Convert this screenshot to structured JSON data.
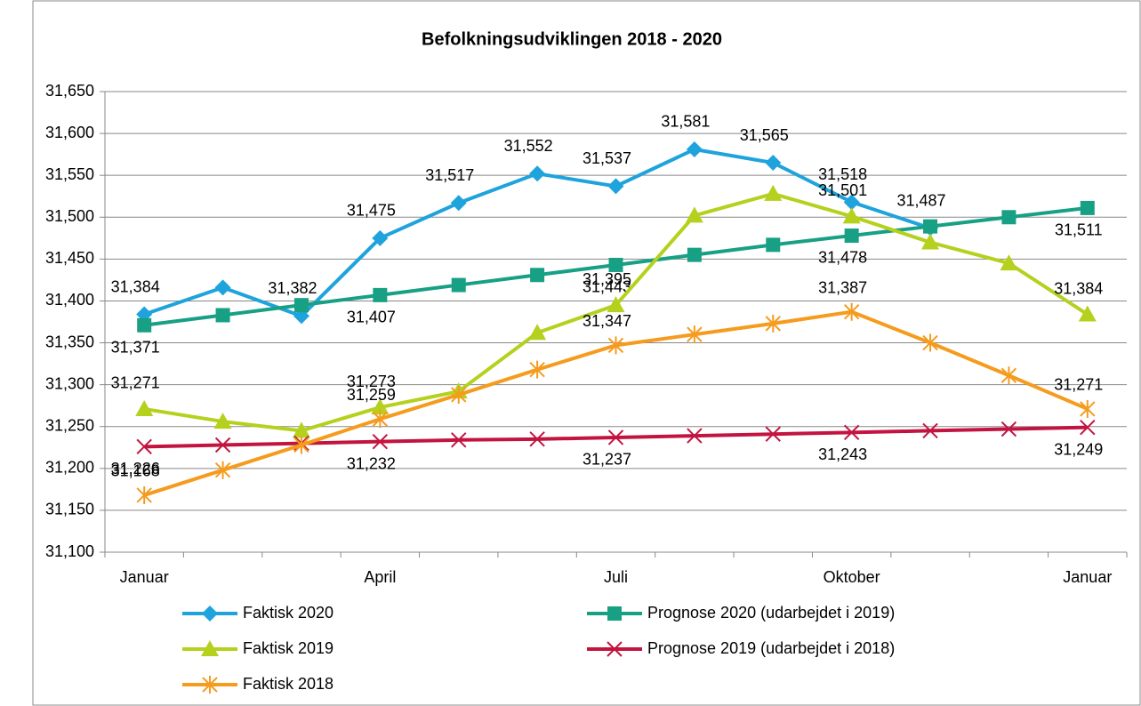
{
  "chart_data": {
    "type": "line",
    "title": "Befolkningsudviklingen 2018 - 2020",
    "categories": [
      "Januar",
      null,
      null,
      "April",
      null,
      null,
      "Juli",
      null,
      null,
      "Oktober",
      null,
      null,
      "Januar"
    ],
    "ylim": [
      31100,
      31650
    ],
    "yticks": [
      {
        "value": 31100,
        "label": "31,100"
      },
      {
        "value": 31150,
        "label": "31,150"
      },
      {
        "value": 31200,
        "label": "31,200"
      },
      {
        "value": 31250,
        "label": "31,250"
      },
      {
        "value": 31300,
        "label": "31,300"
      },
      {
        "value": 31350,
        "label": "31,350"
      },
      {
        "value": 31400,
        "label": "31,400"
      },
      {
        "value": 31450,
        "label": "31,450"
      },
      {
        "value": 31500,
        "label": "31,500"
      },
      {
        "value": 31550,
        "label": "31,550"
      },
      {
        "value": 31600,
        "label": "31,600"
      },
      {
        "value": 31650,
        "label": "31,650"
      }
    ],
    "grid": true,
    "series": [
      {
        "name": "Faktisk 2020",
        "color": "#1ea3dd",
        "marker": "diamond",
        "values": [
          31384,
          31416,
          31382,
          31475,
          31517,
          31552,
          31537,
          31581,
          31565,
          31518,
          31487,
          null,
          null
        ],
        "value_labels": [
          "31,384",
          null,
          "31,382",
          "31,475",
          "31,517",
          "31,552",
          "31,537",
          "31,581",
          "31,565",
          "31,518",
          "31,487",
          null,
          null
        ]
      },
      {
        "name": "Prognose 2020 (udarbejdet i 2019)",
        "color": "#18a085",
        "marker": "square",
        "values": [
          31371,
          31383,
          31395,
          31407,
          31419,
          31431,
          31443,
          31455,
          31467,
          31478,
          31489,
          31500,
          31511
        ],
        "value_labels": [
          "31,371",
          null,
          null,
          "31,407",
          null,
          null,
          "31,443",
          null,
          null,
          "31,478",
          null,
          null,
          "31,511"
        ]
      },
      {
        "name": "Faktisk 2019",
        "color": "#b6d01e",
        "marker": "triangle",
        "values": [
          31271,
          31256,
          31245,
          31273,
          31292,
          31362,
          31395,
          31502,
          31528,
          31501,
          31470,
          31445,
          31384
        ],
        "value_labels": [
          "31,271",
          null,
          null,
          "31,273",
          null,
          null,
          "31,395",
          null,
          null,
          "31,501",
          null,
          null,
          "31,384"
        ]
      },
      {
        "name": "Prognose 2019 (udarbejdet i 2018)",
        "color": "#c2143f",
        "marker": "x",
        "values": [
          31226,
          31228,
          31230,
          31232,
          31234,
          31235,
          31237,
          31239,
          31241,
          31243,
          31245,
          31247,
          31249
        ],
        "value_labels": [
          "31,226",
          null,
          null,
          "31,232",
          null,
          null,
          "31,237",
          null,
          null,
          "31,243",
          null,
          null,
          "31,249"
        ]
      },
      {
        "name": "Faktisk 2018",
        "color": "#f59b1d",
        "marker": "star",
        "values": [
          31168,
          31198,
          31228,
          31259,
          31288,
          31318,
          31347,
          31360,
          31373,
          31387,
          31350,
          31311,
          31271
        ],
        "value_labels": [
          "31,168",
          null,
          null,
          "31,259",
          null,
          null,
          "31,347",
          null,
          null,
          "31,387",
          null,
          null,
          "31,271"
        ]
      }
    ]
  }
}
